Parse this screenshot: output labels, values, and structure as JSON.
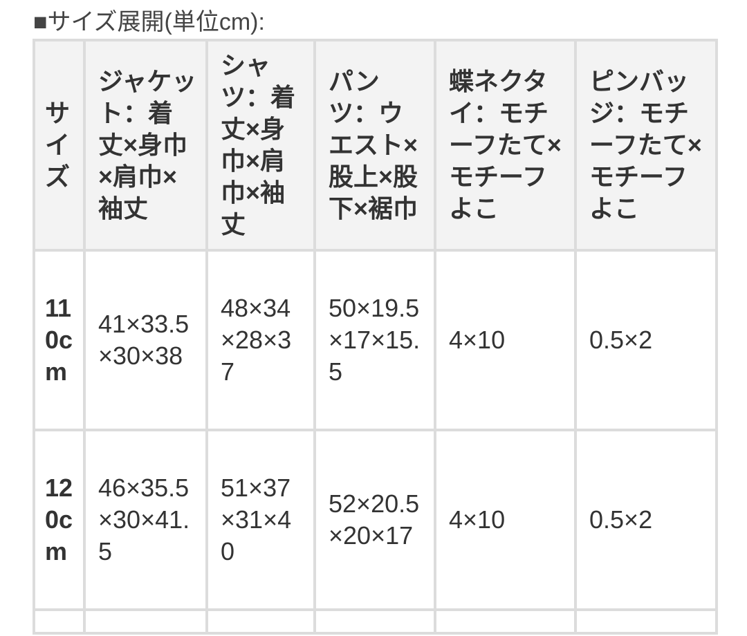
{
  "heading": "■サイズ展開(単位cm):",
  "table": {
    "header": [
      "サイズ",
      "ジャケット：着丈×身巾×肩巾×袖丈",
      "シャツ：着丈×身巾×肩巾×袖丈",
      "パンツ：ウエスト×股上×股下×裾巾",
      "蝶ネクタイ：モチーフたて×モチーフよこ",
      "ピンバッジ：モチーフたて×モチーフよこ"
    ],
    "rows": [
      [
        "110cm",
        "41×33.5×30×38",
        "48×34×28×37",
        "50×19.5×17×15.5",
        "4×10",
        "0.5×2"
      ],
      [
        "120cm",
        "46×35.5×30×41.5",
        "51×37×31×40",
        "52×20.5×20×17",
        "4×10",
        "0.5×2"
      ]
    ]
  }
}
